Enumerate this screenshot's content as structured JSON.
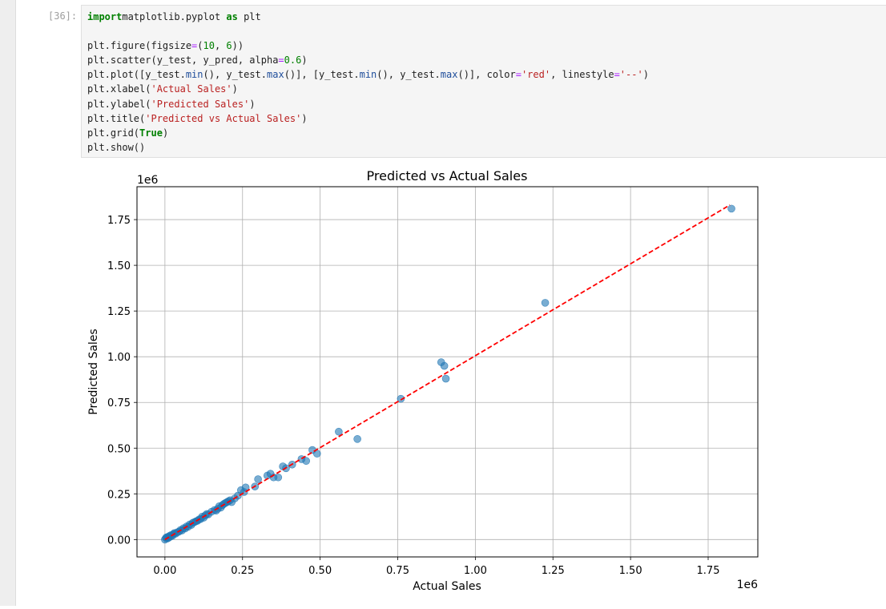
{
  "cell": {
    "prompt": "[36]:",
    "code_lines": [
      [
        [
          "kw",
          "import"
        ],
        [
          "",
          "matplotlib.pyplot "
        ],
        [
          "kw",
          "as"
        ],
        [
          "",
          " plt"
        ]
      ],
      [],
      [
        [
          "",
          "plt.figure(figsize"
        ],
        [
          "op",
          "="
        ],
        [
          "",
          "("
        ],
        [
          "num",
          "10"
        ],
        [
          "",
          ", "
        ],
        [
          "num",
          "6"
        ],
        [
          "",
          "))"
        ]
      ],
      [
        [
          "",
          "plt.scatter(y_test, y_pred, alpha"
        ],
        [
          "op",
          "="
        ],
        [
          "num",
          "0.6"
        ],
        [
          "",
          ")"
        ]
      ],
      [
        [
          "",
          "plt.plot([y_test."
        ],
        [
          "fn",
          "min"
        ],
        [
          "",
          "(), y_test."
        ],
        [
          "fn",
          "max"
        ],
        [
          "",
          "()], [y_test."
        ],
        [
          "fn",
          "min"
        ],
        [
          "",
          "(), y_test."
        ],
        [
          "fn",
          "max"
        ],
        [
          "",
          "()], color"
        ],
        [
          "op",
          "="
        ],
        [
          "str",
          "'red'"
        ],
        [
          "",
          ", linestyle"
        ],
        [
          "op",
          "="
        ],
        [
          "str",
          "'--'"
        ],
        [
          "",
          ")"
        ]
      ],
      [
        [
          "",
          "plt.xlabel("
        ],
        [
          "str",
          "'Actual Sales'"
        ],
        [
          "",
          ")"
        ]
      ],
      [
        [
          "",
          "plt.ylabel("
        ],
        [
          "str",
          "'Predicted Sales'"
        ],
        [
          "",
          ")"
        ]
      ],
      [
        [
          "",
          "plt.title("
        ],
        [
          "str",
          "'Predicted vs Actual Sales'"
        ],
        [
          "",
          ")"
        ]
      ],
      [
        [
          "",
          "plt.grid("
        ],
        [
          "kw",
          "True"
        ],
        [
          "",
          ")"
        ]
      ],
      [
        [
          "",
          "plt.show()"
        ]
      ]
    ]
  },
  "colors": {
    "point": "#1f77b4",
    "line": "#ff0000",
    "grid": "#b0b0b0"
  },
  "chart_data": {
    "type": "scatter",
    "title": "Predicted vs Actual Sales",
    "xlabel": "Actual Sales",
    "ylabel": "Predicted Sales",
    "x_offset_label": "1e6",
    "y_offset_label": "1e6",
    "xlim": [
      -0.09,
      1.91
    ],
    "ylim": [
      -0.095,
      1.93
    ],
    "x_ticks": [
      0.0,
      0.25,
      0.5,
      0.75,
      1.0,
      1.25,
      1.5,
      1.75
    ],
    "x_tick_labels": [
      "0.00",
      "0.25",
      "0.50",
      "0.75",
      "1.00",
      "1.25",
      "1.50",
      "1.75"
    ],
    "y_ticks": [
      0.0,
      0.25,
      0.5,
      0.75,
      1.0,
      1.25,
      1.5,
      1.75
    ],
    "y_tick_labels": [
      "0.00",
      "0.25",
      "0.50",
      "0.75",
      "1.00",
      "1.25",
      "1.50",
      "1.75"
    ],
    "grid": true,
    "reference_line": {
      "x": [
        0.0,
        1.82
      ],
      "y": [
        0.0,
        1.83
      ],
      "style": "dashed"
    },
    "points": [
      [
        0.0,
        0.0
      ],
      [
        0.003,
        0.008
      ],
      [
        0.005,
        0.012
      ],
      [
        0.008,
        0.006
      ],
      [
        0.01,
        0.015
      ],
      [
        0.012,
        0.01
      ],
      [
        0.015,
        0.02
      ],
      [
        0.018,
        0.016
      ],
      [
        0.02,
        0.025
      ],
      [
        0.025,
        0.022
      ],
      [
        0.028,
        0.03
      ],
      [
        0.03,
        0.035
      ],
      [
        0.035,
        0.033
      ],
      [
        0.04,
        0.04
      ],
      [
        0.045,
        0.043
      ],
      [
        0.05,
        0.052
      ],
      [
        0.055,
        0.05
      ],
      [
        0.06,
        0.062
      ],
      [
        0.065,
        0.06
      ],
      [
        0.07,
        0.072
      ],
      [
        0.075,
        0.07
      ],
      [
        0.08,
        0.083
      ],
      [
        0.085,
        0.08
      ],
      [
        0.09,
        0.092
      ],
      [
        0.095,
        0.095
      ],
      [
        0.1,
        0.1
      ],
      [
        0.105,
        0.103
      ],
      [
        0.11,
        0.11
      ],
      [
        0.115,
        0.112
      ],
      [
        0.12,
        0.125
      ],
      [
        0.125,
        0.12
      ],
      [
        0.13,
        0.132
      ],
      [
        0.135,
        0.14
      ],
      [
        0.14,
        0.138
      ],
      [
        0.15,
        0.152
      ],
      [
        0.16,
        0.162
      ],
      [
        0.165,
        0.158
      ],
      [
        0.17,
        0.168
      ],
      [
        0.175,
        0.182
      ],
      [
        0.18,
        0.175
      ],
      [
        0.185,
        0.188
      ],
      [
        0.19,
        0.195
      ],
      [
        0.195,
        0.2
      ],
      [
        0.2,
        0.205
      ],
      [
        0.205,
        0.21
      ],
      [
        0.21,
        0.215
      ],
      [
        0.215,
        0.205
      ],
      [
        0.225,
        0.225
      ],
      [
        0.235,
        0.24
      ],
      [
        0.245,
        0.27
      ],
      [
        0.255,
        0.26
      ],
      [
        0.26,
        0.285
      ],
      [
        0.29,
        0.29
      ],
      [
        0.3,
        0.33
      ],
      [
        0.33,
        0.35
      ],
      [
        0.34,
        0.36
      ],
      [
        0.35,
        0.34
      ],
      [
        0.365,
        0.34
      ],
      [
        0.38,
        0.4
      ],
      [
        0.39,
        0.39
      ],
      [
        0.41,
        0.41
      ],
      [
        0.44,
        0.44
      ],
      [
        0.455,
        0.43
      ],
      [
        0.475,
        0.49
      ],
      [
        0.49,
        0.47
      ],
      [
        0.56,
        0.59
      ],
      [
        0.62,
        0.55
      ],
      [
        0.76,
        0.77
      ],
      [
        0.89,
        0.97
      ],
      [
        0.9,
        0.95
      ],
      [
        0.905,
        0.88
      ],
      [
        1.225,
        1.295
      ],
      [
        1.825,
        1.81
      ]
    ]
  }
}
